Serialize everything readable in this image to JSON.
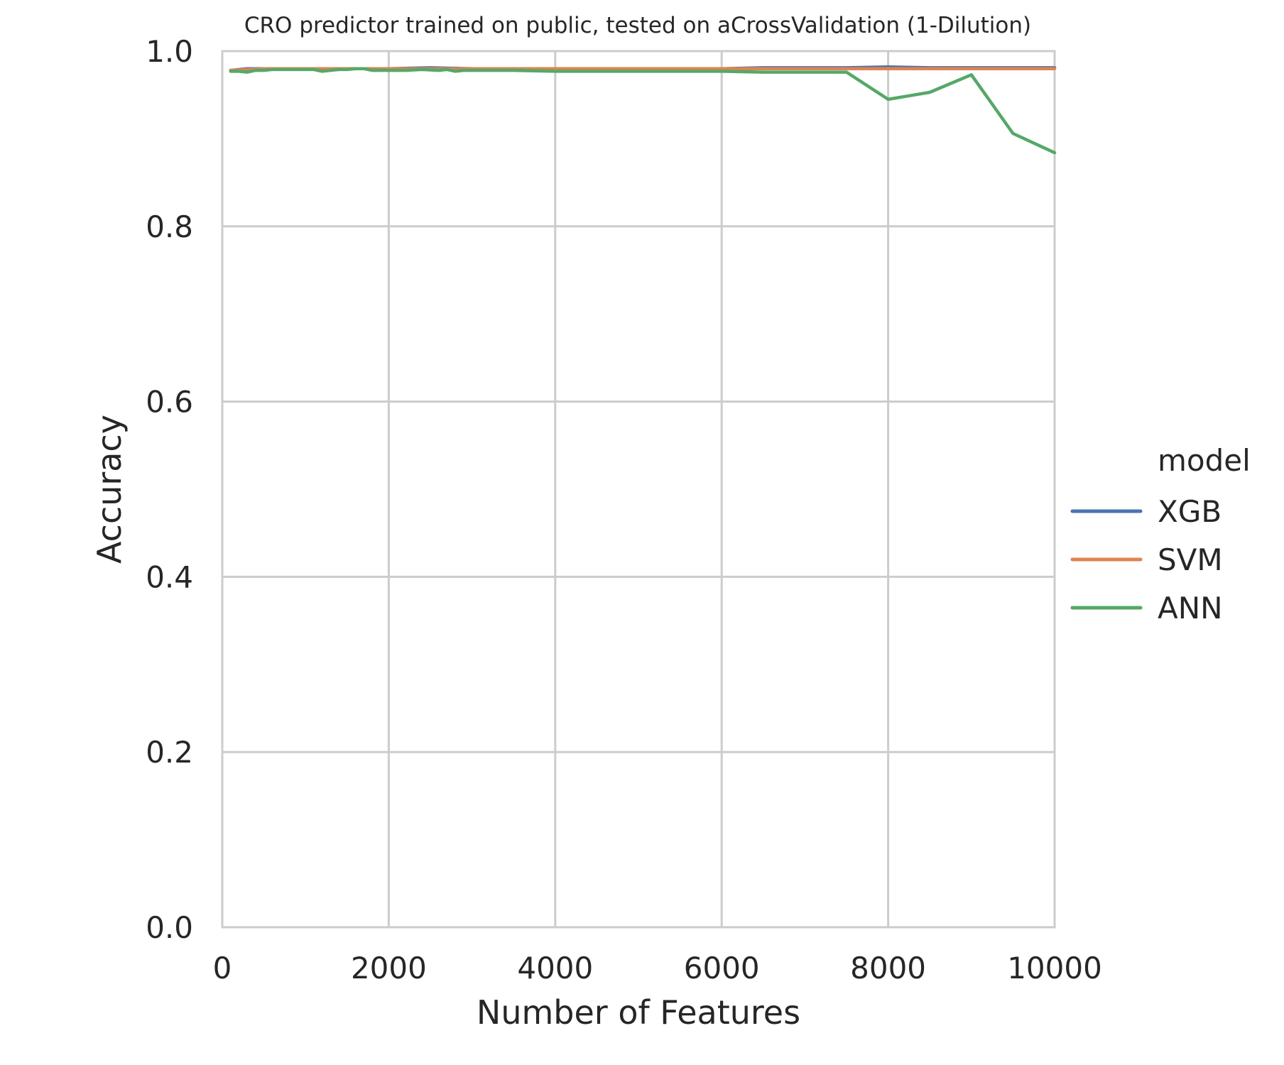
{
  "chart_data": {
    "type": "line",
    "title": "CRO predictor trained on public, tested on aCrossValidation (1-Dilution)",
    "xlabel": "Number of Features",
    "ylabel": "Accuracy",
    "xlim": [
      0,
      10000
    ],
    "ylim": [
      0.0,
      1.0
    ],
    "xticks": [
      0,
      2000,
      4000,
      6000,
      8000,
      10000
    ],
    "xtick_labels": [
      "0",
      "2000",
      "4000",
      "6000",
      "8000",
      "10000"
    ],
    "yticks": [
      0.0,
      0.2,
      0.4,
      0.6,
      0.8,
      1.0
    ],
    "ytick_labels": [
      "0.0",
      "0.2",
      "0.4",
      "0.6",
      "0.8",
      "1.0"
    ],
    "grid": true,
    "legend": {
      "title": "model",
      "placement": "right-outside"
    },
    "series": [
      {
        "name": "XGB",
        "color": "#4c72b0",
        "x": [
          100,
          300,
          500,
          700,
          1000,
          1500,
          2000,
          2500,
          3000,
          3500,
          4000,
          4500,
          5000,
          5500,
          6000,
          6500,
          7000,
          7500,
          8000,
          8500,
          9000,
          9500,
          10000
        ],
        "y": [
          0.978,
          0.98,
          0.98,
          0.98,
          0.98,
          0.98,
          0.98,
          0.981,
          0.98,
          0.98,
          0.98,
          0.98,
          0.98,
          0.98,
          0.98,
          0.981,
          0.981,
          0.981,
          0.982,
          0.981,
          0.981,
          0.981,
          0.981
        ]
      },
      {
        "name": "SVM",
        "color": "#dd8452",
        "x": [
          100,
          300,
          500,
          700,
          1000,
          1500,
          2000,
          2500,
          3000,
          3500,
          4000,
          4500,
          5000,
          5500,
          6000,
          6500,
          7000,
          7500,
          8000,
          8500,
          9000,
          9500,
          10000
        ],
        "y": [
          0.978,
          0.979,
          0.98,
          0.98,
          0.98,
          0.98,
          0.98,
          0.98,
          0.98,
          0.98,
          0.98,
          0.98,
          0.98,
          0.98,
          0.98,
          0.98,
          0.98,
          0.98,
          0.98,
          0.98,
          0.98,
          0.98,
          0.98
        ]
      },
      {
        "name": "ANN",
        "color": "#55a868",
        "x": [
          100,
          200,
          300,
          400,
          500,
          600,
          700,
          800,
          900,
          1000,
          1100,
          1200,
          1300,
          1400,
          1500,
          1600,
          1700,
          1800,
          1900,
          2000,
          2200,
          2400,
          2600,
          2700,
          2800,
          2900,
          3000,
          3500,
          4000,
          4500,
          5000,
          5500,
          6000,
          6500,
          7000,
          7500,
          8000,
          8500,
          9000,
          9500,
          10000
        ],
        "y": [
          0.977,
          0.977,
          0.976,
          0.978,
          0.978,
          0.979,
          0.979,
          0.979,
          0.979,
          0.979,
          0.979,
          0.977,
          0.978,
          0.979,
          0.979,
          0.98,
          0.98,
          0.978,
          0.978,
          0.978,
          0.978,
          0.979,
          0.978,
          0.979,
          0.977,
          0.978,
          0.978,
          0.978,
          0.977,
          0.977,
          0.977,
          0.977,
          0.977,
          0.976,
          0.976,
          0.976,
          0.945,
          0.953,
          0.973,
          0.906,
          0.884
        ]
      }
    ]
  }
}
